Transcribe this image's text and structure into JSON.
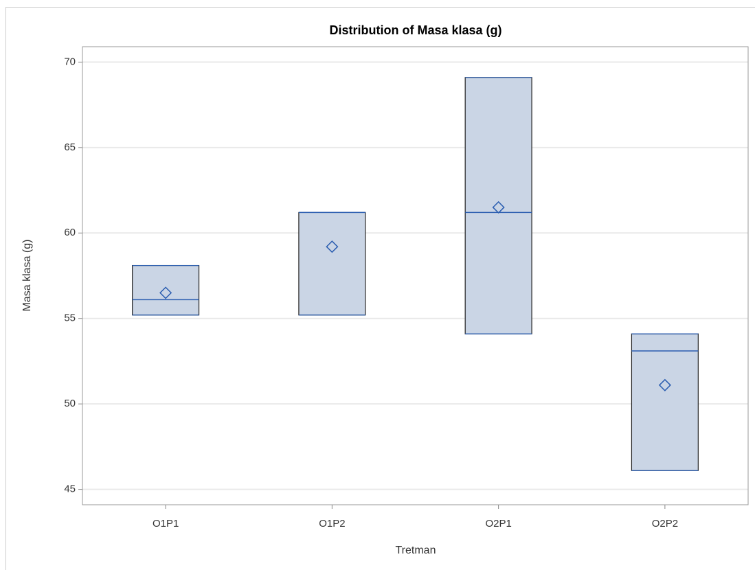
{
  "chart_data": {
    "type": "box",
    "title": "Distribution of Masa klasa (g)",
    "x_label": "Tretman",
    "y_label": "Masa klasa (g)",
    "categories": [
      "O1P1",
      "O1P2",
      "O2P1",
      "O2P2"
    ],
    "boxes": [
      {
        "min": 55.2,
        "q1": 55.2,
        "median": 56.1,
        "q3": 58.1,
        "max": 58.1,
        "mean": 56.5
      },
      {
        "min": 55.2,
        "q1": 55.2,
        "median": 61.2,
        "q3": 61.2,
        "max": 61.2,
        "mean": 59.2
      },
      {
        "min": 54.1,
        "q1": 54.1,
        "median": 61.2,
        "q3": 69.1,
        "max": 69.1,
        "mean": 61.5
      },
      {
        "min": 46.1,
        "q1": 46.1,
        "median": 53.1,
        "q3": 54.1,
        "max": 54.1,
        "mean": 51.1
      }
    ],
    "color": "#cad5e5",
    "line_color": "#2a5db0",
    "ylim": [
      44.1,
      70.9
    ],
    "yticks": [
      45,
      50,
      55,
      60,
      65,
      70
    ],
    "grid": true
  }
}
